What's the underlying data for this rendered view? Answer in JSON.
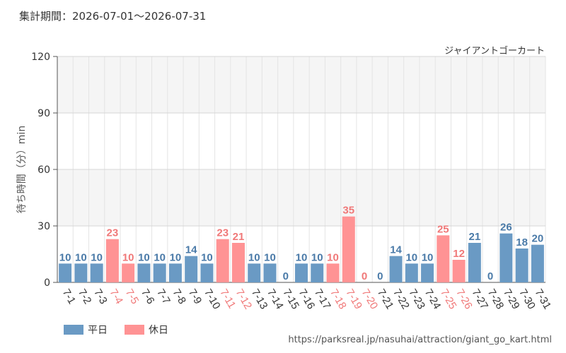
{
  "header": {
    "period_label": "集計期間：2026-07-01～2026-07-31",
    "attraction_name": "ジャイアントゴーカート"
  },
  "footer": {
    "source_url": "https://parksreal.jp/nasuhai/attraction/giant_go_kart.html"
  },
  "legend": [
    {
      "label": "平日",
      "color": "#6a9ac4"
    },
    {
      "label": "休日",
      "color": "#ff9394"
    }
  ],
  "colors": {
    "weekday_bar": "#6a9ac4",
    "holiday_bar": "#ff9394",
    "weekday_text": "#4a7aa8",
    "holiday_text": "#f07878",
    "plot_band": "#f5f5f5",
    "gridline": "#e4e4e4"
  },
  "chart_data": {
    "type": "bar",
    "ylabel": "待ち時間（分）min",
    "xlabel": "",
    "ylim": [
      0,
      120
    ],
    "yticks": [
      0,
      30,
      60,
      90,
      120
    ],
    "grid": true,
    "legend_position": "bottom-left",
    "categories": [
      "7-1",
      "7-2",
      "7-3",
      "7-4",
      "7-5",
      "7-6",
      "7-7",
      "7-8",
      "7-9",
      "7-10",
      "7-11",
      "7-12",
      "7-13",
      "7-14",
      "7-15",
      "7-16",
      "7-17",
      "7-18",
      "7-19",
      "7-20",
      "7-21",
      "7-22",
      "7-23",
      "7-24",
      "7-25",
      "7-26",
      "7-27",
      "7-28",
      "7-29",
      "7-30",
      "7-31"
    ],
    "values": [
      10,
      10,
      10,
      23,
      10,
      10,
      10,
      10,
      14,
      10,
      23,
      21,
      10,
      10,
      0,
      10,
      10,
      10,
      35,
      0,
      0,
      14,
      10,
      10,
      25,
      12,
      21,
      0,
      26,
      18,
      20
    ],
    "day_type": [
      "平日",
      "平日",
      "平日",
      "休日",
      "休日",
      "平日",
      "平日",
      "平日",
      "平日",
      "平日",
      "休日",
      "休日",
      "平日",
      "平日",
      "平日",
      "平日",
      "平日",
      "休日",
      "休日",
      "休日",
      "平日",
      "平日",
      "平日",
      "平日",
      "休日",
      "休日",
      "平日",
      "平日",
      "平日",
      "平日",
      "平日"
    ],
    "series": [
      {
        "name": "平日"
      },
      {
        "name": "休日"
      }
    ]
  }
}
